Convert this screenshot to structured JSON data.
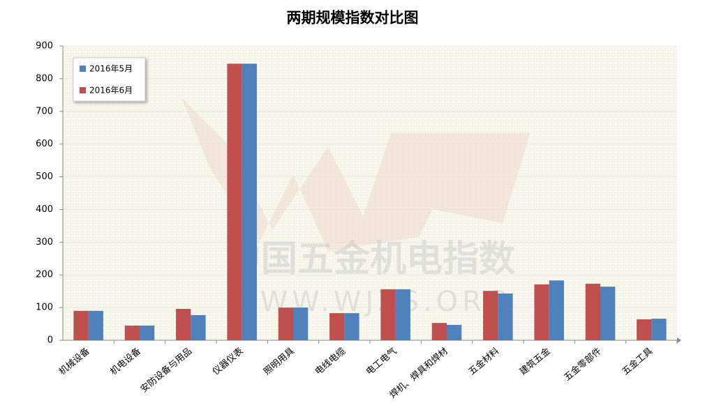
{
  "chart_data": {
    "type": "bar",
    "title": "两期规模指数对比图",
    "categories": [
      "机械设备",
      "机电设备",
      "安防设备与用品",
      "仪器仪表",
      "照明用具",
      "电线电缆",
      "电工电气",
      "焊机、焊具和焊材",
      "五金材料",
      "建筑五金",
      "五金零部件",
      "五金工具"
    ],
    "series": [
      {
        "name": "2016年5月",
        "color": "#4f81bd",
        "values": [
          90,
          45,
          77,
          846,
          100,
          83,
          156,
          47,
          143,
          183,
          164,
          66
        ]
      },
      {
        "name": "2016年6月",
        "color": "#c0504d",
        "values": [
          90,
          45,
          96,
          846,
          100,
          83,
          156,
          53,
          151,
          171,
          173,
          64
        ]
      }
    ],
    "ylim": [
      0,
      900
    ],
    "yticks": [
      0,
      100,
      200,
      300,
      400,
      500,
      600,
      700,
      800,
      900
    ],
    "grid": true,
    "legend": "top-left",
    "watermark": [
      "中国五金机电指数",
      "WWW.WJZS.ORG"
    ]
  }
}
